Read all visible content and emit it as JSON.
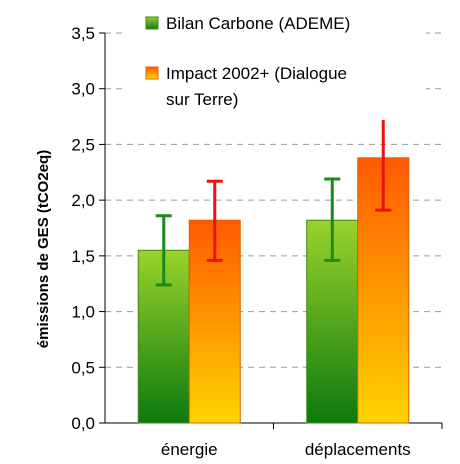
{
  "chart_data": {
    "type": "bar",
    "categories": [
      "énergie",
      "déplacements"
    ],
    "series": [
      {
        "name": "Bilan Carbone (ADEME)",
        "values": [
          1.55,
          1.82
        ],
        "error_low": [
          1.24,
          1.46
        ],
        "error_high": [
          1.86,
          2.19
        ],
        "gradient_top": "#9bd22b",
        "gradient_bottom": "#0c7a10",
        "border": "#3a8a16",
        "error_color": "#1a8a1a"
      },
      {
        "name": "Impact 2002+ (Dialogue sur Terre)",
        "legend_lines": [
          "Impact 2002+ (Dialogue",
          "sur Terre)"
        ],
        "values": [
          1.82,
          2.38
        ],
        "error_low": [
          1.46,
          1.91
        ],
        "error_high": [
          2.17,
          2.85
        ],
        "gradient_top": "#ff5a00",
        "gradient_bottom": "#ffd400",
        "border": "#e06000",
        "error_color": "#ee1111"
      }
    ],
    "ylabel": "émissions de GES (tCO2eq)",
    "xlabel": "",
    "ylim": [
      0,
      3.5
    ],
    "yticks": [
      "0,0",
      "0,5",
      "1,0",
      "1,5",
      "2,0",
      "2,5",
      "3,0",
      "3,5"
    ],
    "grid": true,
    "legend_position": "top-right"
  }
}
